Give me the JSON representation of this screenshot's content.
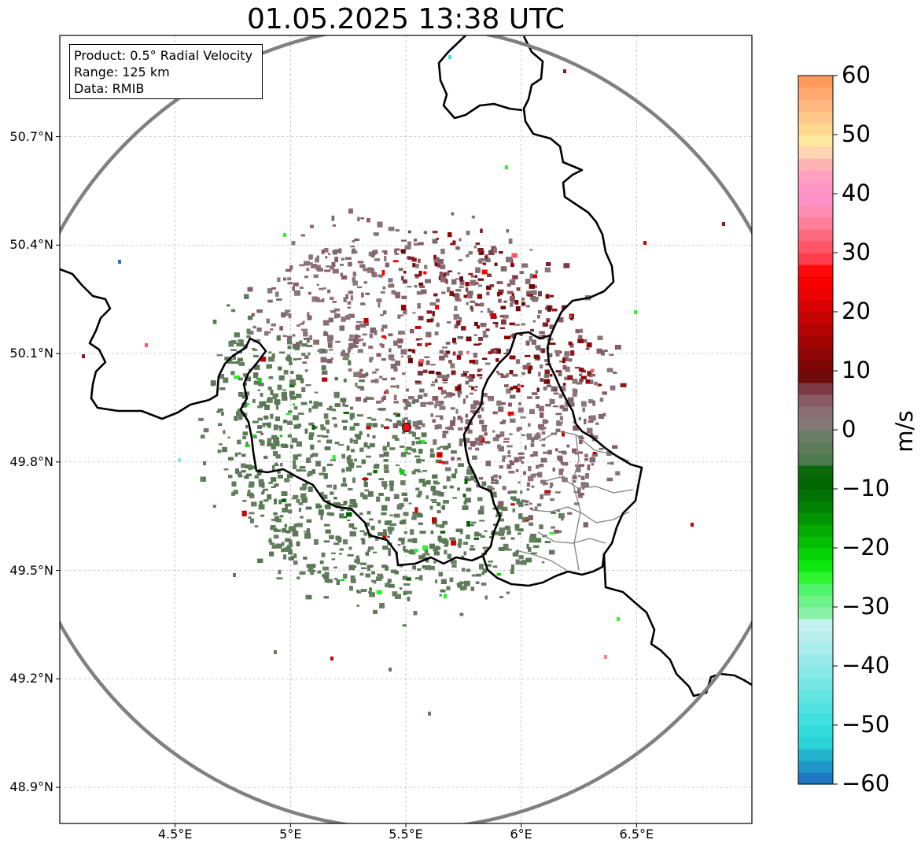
{
  "title": "01.05.2025 13:38 UTC",
  "info": {
    "product": "Product: 0.5° Radial Velocity",
    "range": "Range: 125 km",
    "source": "Data: RMIB"
  },
  "map": {
    "lon_range": [
      4.0,
      7.0
    ],
    "lat_range": [
      48.8,
      50.98
    ],
    "radar_site": {
      "lon": 5.505,
      "lat": 49.915
    },
    "range_ring_km": 125,
    "x_ticks": [
      {
        "value": 4.5,
        "label": "4.5°E"
      },
      {
        "value": 5.0,
        "label": "5°E"
      },
      {
        "value": 5.5,
        "label": "5.5°E"
      },
      {
        "value": 6.0,
        "label": "6°E"
      },
      {
        "value": 6.5,
        "label": "6.5°E"
      }
    ],
    "y_ticks": [
      {
        "value": 50.7,
        "label": "50.7°N"
      },
      {
        "value": 50.4,
        "label": "50.4°N"
      },
      {
        "value": 50.1,
        "label": "50.1°N"
      },
      {
        "value": 49.8,
        "label": "49.8°N"
      },
      {
        "value": 49.5,
        "label": "49.5°N"
      },
      {
        "value": 49.2,
        "label": "49.2°N"
      },
      {
        "value": 48.9,
        "label": "48.9°N"
      }
    ],
    "colors": {
      "border": "#000000",
      "subdivision": "#808080",
      "range_ring": "#808080",
      "grid": "#b0b0b0",
      "radar_marker": "#e8141b",
      "outbound": "#8a1a22",
      "inbound": "#5e7c5a"
    }
  },
  "colorbar": {
    "unit": "m/s",
    "min": -60,
    "max": 60,
    "tick_labels": [
      {
        "value": 60,
        "label": "60"
      },
      {
        "value": 50,
        "label": "50"
      },
      {
        "value": 40,
        "label": "40"
      },
      {
        "value": 30,
        "label": "30"
      },
      {
        "value": 20,
        "label": "20"
      },
      {
        "value": 10,
        "label": "10"
      },
      {
        "value": 0,
        "label": "0"
      },
      {
        "value": -10,
        "label": "−10"
      },
      {
        "value": -20,
        "label": "−20"
      },
      {
        "value": -30,
        "label": "−30"
      },
      {
        "value": -40,
        "label": "−40"
      },
      {
        "value": -50,
        "label": "−50"
      },
      {
        "value": -60,
        "label": "−60"
      }
    ],
    "stops": [
      {
        "from": -60,
        "to": -58,
        "color": "#1f77c4"
      },
      {
        "from": -58,
        "to": -56,
        "color": "#1f95c8"
      },
      {
        "from": -56,
        "to": -54,
        "color": "#22b4cc"
      },
      {
        "from": -54,
        "to": -52,
        "color": "#2ad3d6"
      },
      {
        "from": -52,
        "to": -50,
        "color": "#33dcdc"
      },
      {
        "from": -50,
        "to": -48,
        "color": "#3fe0df"
      },
      {
        "from": -48,
        "to": -46,
        "color": "#52e2e1"
      },
      {
        "from": -46,
        "to": -44,
        "color": "#63e4e2"
      },
      {
        "from": -44,
        "to": -42,
        "color": "#76e6e4"
      },
      {
        "from": -42,
        "to": -40,
        "color": "#88e8e6"
      },
      {
        "from": -40,
        "to": -38,
        "color": "#98eaea"
      },
      {
        "from": -38,
        "to": -36,
        "color": "#a8ecec"
      },
      {
        "from": -36,
        "to": -34,
        "color": "#b8eeee"
      },
      {
        "from": -34,
        "to": -32,
        "color": "#c5f0f0"
      },
      {
        "from": -32,
        "to": -30,
        "color": "#8af2a8"
      },
      {
        "from": -30,
        "to": -28,
        "color": "#6ef28a"
      },
      {
        "from": -28,
        "to": -26,
        "color": "#4ef46a"
      },
      {
        "from": -26,
        "to": -24,
        "color": "#2cf42e"
      },
      {
        "from": -24,
        "to": -22,
        "color": "#0fe80f"
      },
      {
        "from": -22,
        "to": -20,
        "color": "#07d407"
      },
      {
        "from": -20,
        "to": -18,
        "color": "#03bf03"
      },
      {
        "from": -18,
        "to": -16,
        "color": "#02aa02"
      },
      {
        "from": -16,
        "to": -14,
        "color": "#029602"
      },
      {
        "from": -14,
        "to": -12,
        "color": "#028202"
      },
      {
        "from": -12,
        "to": -10,
        "color": "#017201"
      },
      {
        "from": -10,
        "to": -8,
        "color": "#016601"
      },
      {
        "from": -8,
        "to": -6,
        "color": "#0a6a0a"
      },
      {
        "from": -6,
        "to": -4,
        "color": "#4c7a4c"
      },
      {
        "from": -4,
        "to": -2,
        "color": "#5e7c5a"
      },
      {
        "from": -2,
        "to": 0,
        "color": "#6a7e66"
      },
      {
        "from": 0,
        "to": 2,
        "color": "#857a76"
      },
      {
        "from": 2,
        "to": 4,
        "color": "#8a6e76"
      },
      {
        "from": 4,
        "to": 6,
        "color": "#8a5a66"
      },
      {
        "from": 6,
        "to": 8,
        "color": "#7e3a44"
      },
      {
        "from": 8,
        "to": 10,
        "color": "#6e0a0a"
      },
      {
        "from": 10,
        "to": 12,
        "color": "#7e0505"
      },
      {
        "from": 12,
        "to": 14,
        "color": "#900505"
      },
      {
        "from": 14,
        "to": 16,
        "color": "#a20404"
      },
      {
        "from": 16,
        "to": 18,
        "color": "#b40303"
      },
      {
        "from": 18,
        "to": 20,
        "color": "#c60303"
      },
      {
        "from": 20,
        "to": 22,
        "color": "#d80202"
      },
      {
        "from": 22,
        "to": 24,
        "color": "#ea0101"
      },
      {
        "from": 24,
        "to": 26,
        "color": "#f80000"
      },
      {
        "from": 26,
        "to": 28,
        "color": "#fe0a0a"
      },
      {
        "from": 28,
        "to": 30,
        "color": "#ff3c4c"
      },
      {
        "from": 30,
        "to": 32,
        "color": "#ff5566"
      },
      {
        "from": 32,
        "to": 34,
        "color": "#ff6a7e"
      },
      {
        "from": 34,
        "to": 36,
        "color": "#ff7e98"
      },
      {
        "from": 36,
        "to": 38,
        "color": "#ff8cb4"
      },
      {
        "from": 38,
        "to": 40,
        "color": "#ff90c8"
      },
      {
        "from": 40,
        "to": 42,
        "color": "#ff96c6"
      },
      {
        "from": 42,
        "to": 44,
        "color": "#ffa0c0"
      },
      {
        "from": 44,
        "to": 46,
        "color": "#ffb4b4"
      },
      {
        "from": 46,
        "to": 48,
        "color": "#ffd4b0"
      },
      {
        "from": 48,
        "to": 50,
        "color": "#ffe8a0"
      },
      {
        "from": 50,
        "to": 52,
        "color": "#ffd890"
      },
      {
        "from": 52,
        "to": 54,
        "color": "#ffc888"
      },
      {
        "from": 54,
        "to": 56,
        "color": "#ffb880"
      },
      {
        "from": 56,
        "to": 58,
        "color": "#ffa870"
      },
      {
        "from": 58,
        "to": 60,
        "color": "#ff9a5c"
      }
    ]
  }
}
